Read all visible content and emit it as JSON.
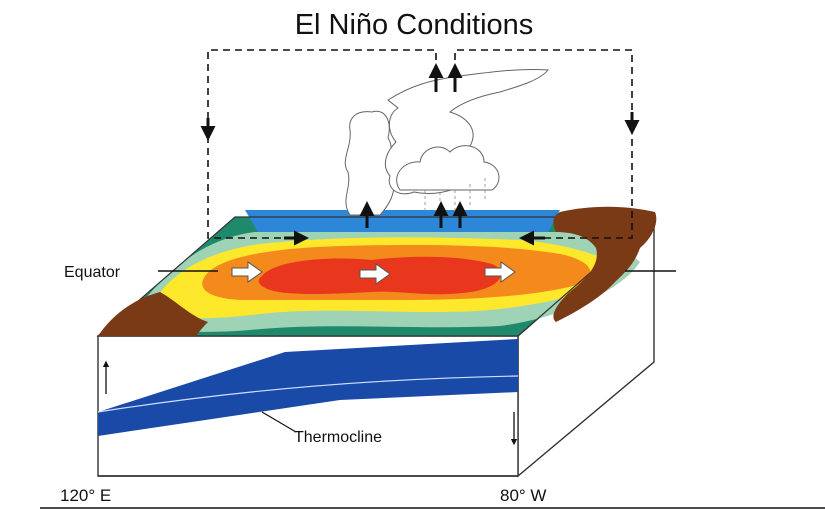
{
  "title": "El Niño Conditions",
  "labels": {
    "equator": "Equator",
    "thermocline": "Thermocline",
    "west_longitude": "120° E",
    "east_longitude": "80° W"
  },
  "colors": {
    "warm_core": "#e8371d",
    "warm": "#f58a1c",
    "mild": "#fde82c",
    "cool": "#9fd3b6",
    "cold": "#1f8a6b",
    "upwelling": "#2d87d8",
    "land": "#7b3a16",
    "deep_water": "#1846a6"
  }
}
